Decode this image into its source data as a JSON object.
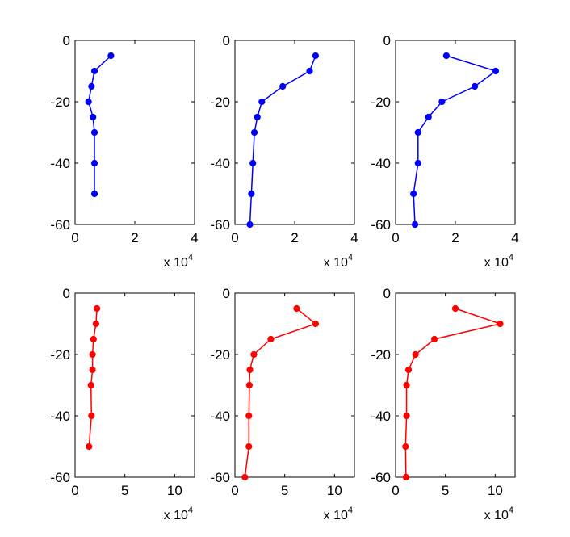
{
  "chart_data": [
    {
      "type": "line",
      "series": [
        {
          "color": "#0000ff",
          "x": [
            12000,
            6500,
            5500,
            4500,
            6000,
            6500,
            6500,
            6500
          ],
          "y": [
            -5,
            -10,
            -15,
            -20,
            -25,
            -30,
            -40,
            -50
          ]
        }
      ],
      "xlim": [
        0,
        4
      ],
      "ylim": [
        -60,
        0
      ],
      "xticks": [
        "0",
        "2",
        "4"
      ],
      "yticks": [
        "0",
        "-20",
        "-40",
        "-60"
      ],
      "multiplier": {
        "base": "x 10",
        "exp": "4"
      },
      "x_scale": 10000
    },
    {
      "type": "line",
      "series": [
        {
          "color": "#0000ff",
          "x": [
            27000,
            25000,
            16000,
            9000,
            7500,
            6500,
            6000,
            5500,
            5000
          ],
          "y": [
            -5,
            -10,
            -15,
            -20,
            -25,
            -30,
            -40,
            -50,
            -60
          ]
        }
      ],
      "xlim": [
        0,
        4
      ],
      "ylim": [
        -60,
        0
      ],
      "xticks": [
        "0",
        "2",
        "4"
      ],
      "yticks": [
        "0",
        "-20",
        "-40",
        "-60"
      ],
      "multiplier": {
        "base": "x 10",
        "exp": "4"
      },
      "x_scale": 10000
    },
    {
      "type": "line",
      "series": [
        {
          "color": "#0000ff",
          "x": [
            17000,
            33500,
            26500,
            15500,
            11000,
            7500,
            7500,
            6000,
            6500
          ],
          "y": [
            -5,
            -10,
            -15,
            -20,
            -25,
            -30,
            -40,
            -50,
            -60
          ]
        }
      ],
      "xlim": [
        0,
        4
      ],
      "ylim": [
        -60,
        0
      ],
      "xticks": [
        "0",
        "2",
        "4"
      ],
      "yticks": [
        "0",
        "-20",
        "-40",
        "-60"
      ],
      "multiplier": {
        "base": "x 10",
        "exp": "4"
      },
      "x_scale": 10000
    },
    {
      "type": "line",
      "series": [
        {
          "color": "#ff0000",
          "x": [
            22000,
            21000,
            18500,
            17500,
            17500,
            16000,
            16500,
            14000
          ],
          "y": [
            -5,
            -10,
            -15,
            -20,
            -25,
            -30,
            -40,
            -50
          ]
        }
      ],
      "xlim": [
        0,
        12
      ],
      "ylim": [
        -60,
        0
      ],
      "xticks": [
        "0",
        "5",
        "10"
      ],
      "yticks": [
        "0",
        "-20",
        "-40",
        "-60"
      ],
      "multiplier": {
        "base": "x 10",
        "exp": "4"
      },
      "x_scale": 10000
    },
    {
      "type": "line",
      "series": [
        {
          "color": "#ff0000",
          "x": [
            62000,
            81000,
            36000,
            19000,
            15000,
            14500,
            14000,
            14000,
            10000
          ],
          "y": [
            -5,
            -10,
            -15,
            -20,
            -25,
            -30,
            -40,
            -50,
            -60
          ]
        }
      ],
      "xlim": [
        0,
        12
      ],
      "ylim": [
        -60,
        0
      ],
      "xticks": [
        "0",
        "5",
        "10"
      ],
      "yticks": [
        "0",
        "-20",
        "-40",
        "-60"
      ],
      "multiplier": {
        "base": "x 10",
        "exp": "4"
      },
      "x_scale": 10000
    },
    {
      "type": "line",
      "series": [
        {
          "color": "#ff0000",
          "x": [
            60000,
            105000,
            39000,
            20000,
            13000,
            11000,
            11000,
            10000,
            10500
          ],
          "y": [
            -5,
            -10,
            -15,
            -20,
            -25,
            -30,
            -40,
            -50,
            -60
          ]
        }
      ],
      "xlim": [
        0,
        12
      ],
      "ylim": [
        -60,
        0
      ],
      "xticks": [
        "0",
        "5",
        "10"
      ],
      "yticks": [
        "0",
        "-20",
        "-40",
        "-60"
      ],
      "multiplier": {
        "base": "x 10",
        "exp": "4"
      },
      "x_scale": 10000
    }
  ]
}
